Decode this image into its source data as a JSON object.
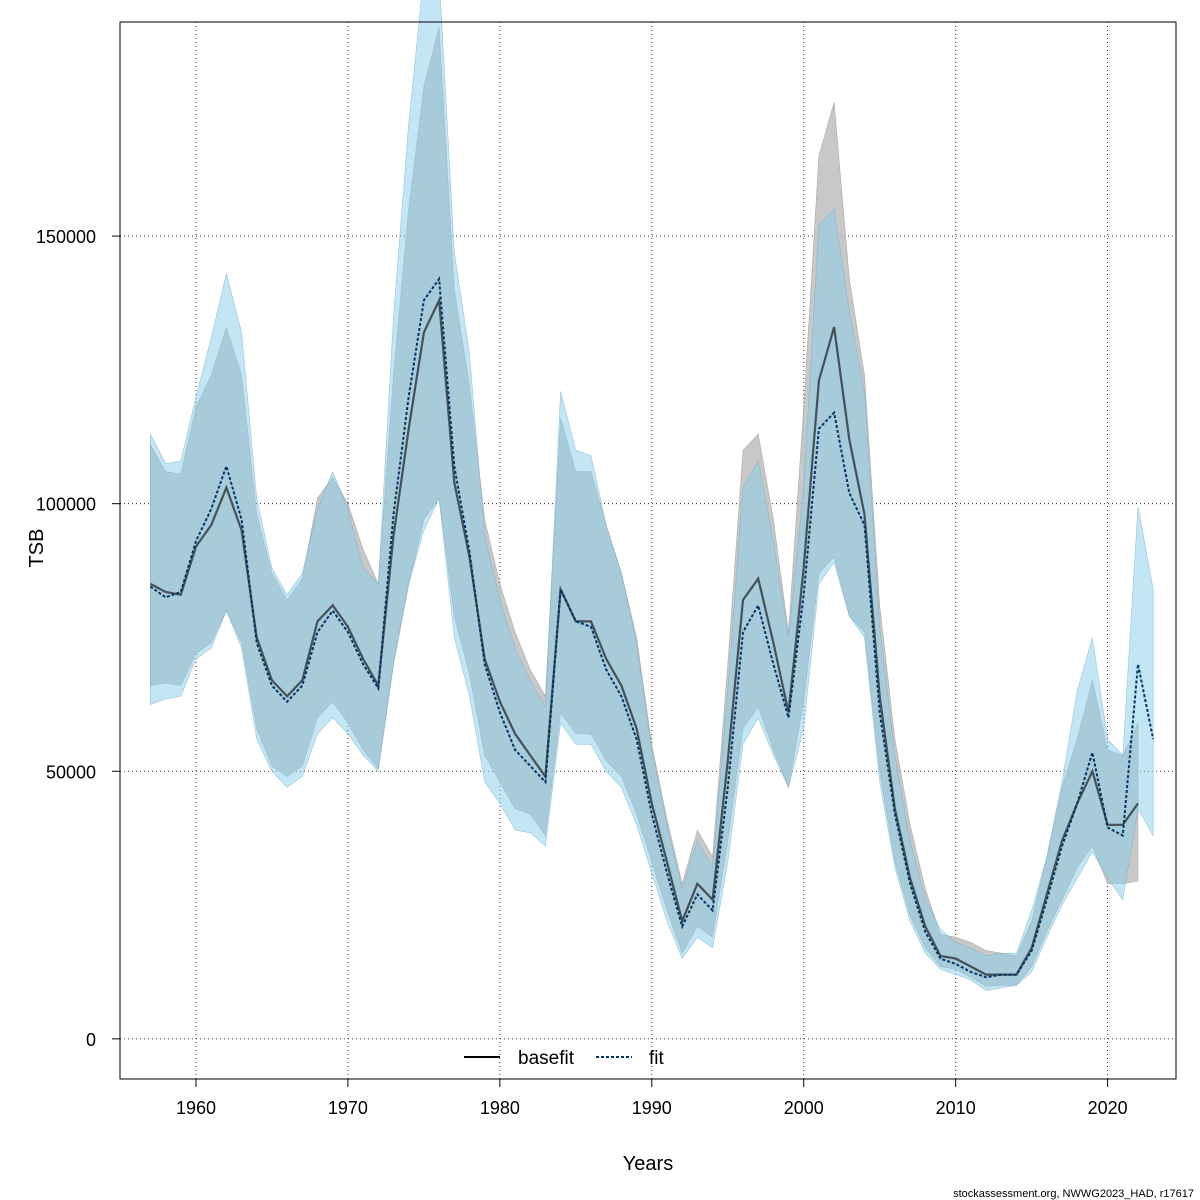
{
  "chart_data": {
    "type": "line",
    "title": "",
    "xlabel": "Years",
    "ylabel": "TSB",
    "xlim": [
      1955,
      2024.5
    ],
    "ylim": [
      -7500,
      190000
    ],
    "xticks": [
      1960,
      1970,
      1980,
      1990,
      2000,
      2010,
      2020
    ],
    "yticks": [
      0,
      50000,
      100000,
      150000
    ],
    "x_tick_labels": [
      "1960",
      "1970",
      "1980",
      "1990",
      "2000",
      "2010",
      "2020"
    ],
    "y_tick_labels": [
      "0",
      "50000",
      "100000",
      "150000"
    ],
    "grid": true,
    "legend_position": "bottom-center",
    "credit": "stockassessment.org, NWWG2023_HAD, r17617",
    "colors": {
      "basefit_line": "#000000",
      "basefit_band": "#bebebe",
      "fit_line": "#003366",
      "fit_band": "#87ceeb"
    },
    "series": [
      {
        "name": "basefit",
        "style": "solid",
        "x": [
          1957,
          1958,
          1959,
          1960,
          1961,
          1962,
          1963,
          1964,
          1965,
          1966,
          1967,
          1968,
          1969,
          1970,
          1971,
          1972,
          1973,
          1974,
          1975,
          1976,
          1977,
          1978,
          1979,
          1980,
          1981,
          1982,
          1983,
          1984,
          1985,
          1986,
          1987,
          1988,
          1989,
          1990,
          1991,
          1992,
          1993,
          1994,
          1995,
          1996,
          1997,
          1998,
          1999,
          2000,
          2001,
          2002,
          2003,
          2004,
          2005,
          2006,
          2007,
          2008,
          2009,
          2010,
          2011,
          2012,
          2013,
          2014,
          2015,
          2016,
          2017,
          2018,
          2019,
          2020,
          2021,
          2022
        ],
        "values": [
          85000,
          83500,
          83000,
          92000,
          96000,
          103000,
          95000,
          75000,
          67000,
          64000,
          67000,
          78000,
          81000,
          77000,
          71000,
          66000,
          94000,
          114000,
          132000,
          138000,
          104000,
          90000,
          71000,
          63000,
          57000,
          53000,
          49000,
          84000,
          78000,
          78000,
          71000,
          66000,
          58000,
          44000,
          33000,
          22000,
          29000,
          26000,
          52000,
          82000,
          86000,
          74000,
          61000,
          88000,
          123000,
          133000,
          112000,
          98000,
          64000,
          43000,
          30000,
          21000,
          15500,
          15000,
          13500,
          12000,
          12000,
          12000,
          17000,
          27000,
          37000,
          44000,
          50000,
          40000,
          40000,
          44000
        ],
        "lower": [
          66000,
          66500,
          66000,
          72000,
          74000,
          80000,
          74000,
          58000,
          51000,
          49000,
          51000,
          60000,
          63000,
          59000,
          54000,
          50500,
          70000,
          85000,
          97000,
          101000,
          79000,
          68000,
          53000,
          48000,
          43000,
          42000,
          38000,
          61000,
          57000,
          57000,
          52000,
          49000,
          42000,
          33000,
          24000,
          16000,
          21000,
          19000,
          37000,
          58000,
          62000,
          54000,
          47000,
          63000,
          87000,
          90000,
          79000,
          76000,
          50000,
          33000,
          23000,
          17000,
          13500,
          13000,
          11500,
          9800,
          10000,
          10000,
          13500,
          20000,
          26000,
          32000,
          36000,
          29000,
          29000,
          29500
        ],
        "upper": [
          111000,
          106000,
          105500,
          118000,
          124000,
          133000,
          124000,
          98000,
          87000,
          82000,
          86000,
          101000,
          105000,
          100000,
          91500,
          85000,
          124000,
          155000,
          178000,
          189000,
          140000,
          122000,
          97000,
          85000,
          76000,
          69000,
          64000,
          116000,
          106000,
          106000,
          96000,
          87000,
          75000,
          55000,
          41000,
          29000,
          39000,
          34000,
          70000,
          110000,
          113000,
          97000,
          76000,
          118000,
          165000,
          175000,
          142000,
          124000,
          81000,
          56000,
          40000,
          28000,
          19500,
          19000,
          18000,
          16500,
          16000,
          15500,
          22000,
          34000,
          47000,
          56000,
          67000,
          54000,
          53000,
          59000
        ]
      },
      {
        "name": "fit",
        "style": "dotted",
        "x": [
          1957,
          1958,
          1959,
          1960,
          1961,
          1962,
          1963,
          1964,
          1965,
          1966,
          1967,
          1968,
          1969,
          1970,
          1971,
          1972,
          1973,
          1974,
          1975,
          1976,
          1977,
          1978,
          1979,
          1980,
          1981,
          1982,
          1983,
          1984,
          1985,
          1986,
          1987,
          1988,
          1989,
          1990,
          1991,
          1992,
          1993,
          1994,
          1995,
          1996,
          1997,
          1998,
          1999,
          2000,
          2001,
          2002,
          2003,
          2004,
          2005,
          2006,
          2007,
          2008,
          2009,
          2010,
          2011,
          2012,
          2013,
          2014,
          2015,
          2016,
          2017,
          2018,
          2019,
          2020,
          2021,
          2022,
          2023
        ],
        "values": [
          84500,
          82500,
          83500,
          93000,
          99000,
          107000,
          97000,
          74000,
          66000,
          63000,
          66000,
          76000,
          80000,
          76000,
          70000,
          65500,
          98000,
          120000,
          138000,
          142000,
          107000,
          91000,
          70000,
          61000,
          54000,
          51000,
          48000,
          84000,
          78000,
          77000,
          69000,
          64000,
          56000,
          42000,
          31000,
          21000,
          27000,
          24000,
          47000,
          76000,
          81000,
          70000,
          60000,
          83000,
          114000,
          117000,
          102000,
          96000,
          61000,
          42000,
          29000,
          20000,
          15000,
          14000,
          12500,
          11500,
          12000,
          12000,
          16500,
          26000,
          36000,
          44000,
          53500,
          39500,
          38000,
          70000,
          56000
        ],
        "lower": [
          62500,
          63500,
          64000,
          71000,
          73000,
          80000,
          73000,
          56000,
          50000,
          47000,
          49000,
          57000,
          60000,
          57000,
          53000,
          50000,
          70000,
          85000,
          95000,
          101000,
          75000,
          64000,
          48000,
          44000,
          39000,
          38500,
          36000,
          59000,
          55000,
          55000,
          50000,
          47000,
          40000,
          31000,
          22000,
          15000,
          19000,
          17000,
          33000,
          55000,
          60000,
          53000,
          47000,
          58000,
          85000,
          89000,
          79000,
          75000,
          48000,
          32000,
          22000,
          16000,
          13000,
          12000,
          11000,
          9000,
          9500,
          10000,
          12500,
          19000,
          25000,
          30000,
          35000,
          30000,
          26000,
          43000,
          38000
        ],
        "upper": [
          113000,
          107500,
          108000,
          120000,
          131000,
          143000,
          132000,
          101000,
          88000,
          83000,
          87000,
          99000,
          106000,
          99000,
          88000,
          85000,
          135000,
          171000,
          199000,
          199000,
          147000,
          128000,
          94000,
          82000,
          73000,
          67000,
          62000,
          121000,
          110000,
          109000,
          96000,
          87000,
          74000,
          54000,
          40000,
          28000,
          37000,
          32000,
          65000,
          103000,
          108000,
          93000,
          75000,
          103000,
          152000,
          155000,
          136000,
          121000,
          77000,
          53000,
          37000,
          26000,
          20500,
          18000,
          17000,
          15500,
          16000,
          16000,
          24000,
          34000,
          48000,
          65000,
          75000,
          56000,
          53000,
          99500,
          84000
        ]
      }
    ]
  }
}
